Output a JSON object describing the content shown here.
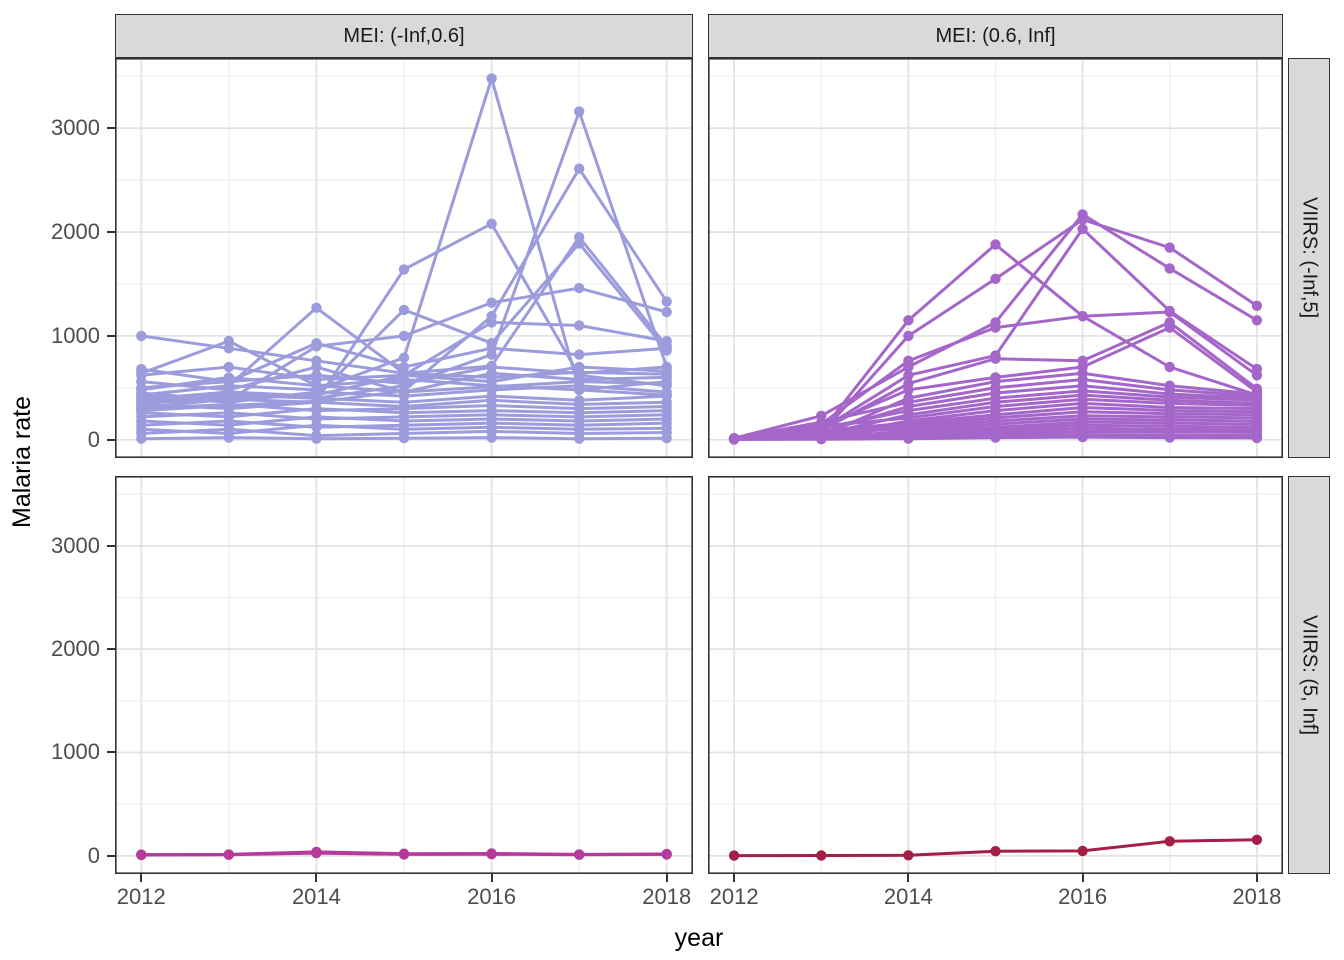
{
  "figure": {
    "y_axis_title": "Malaria rate",
    "x_axis_title": "year",
    "column_strips": [
      "MEI: (-Inf,0.6]",
      "MEI: (0.6, Inf]"
    ],
    "row_strips": [
      "VIIRS: (-Inf,5]",
      "VIIRS: (5, Inf]"
    ],
    "y_tick_labels": [
      "0",
      "1000",
      "2000",
      "3000"
    ],
    "x_tick_labels": [
      "2012",
      "2014",
      "2016",
      "2018"
    ]
  },
  "colors": {
    "series_top_left": "#9c9cdc",
    "series_top_right": "#a566c9",
    "series_bottom_left": "#b53a9c",
    "series_bottom_right": "#a41e45",
    "strip_background": "#d9d9d9",
    "panel_border": "#333333",
    "grid_major": "#e3e3e3",
    "grid_minor": "#f0f0f0",
    "tick_label": "#4d4d4d",
    "background": "#ffffff"
  },
  "chart_data": {
    "type": "line",
    "title": "",
    "xlabel": "year",
    "ylabel": "Malaria rate",
    "x": [
      2012,
      2013,
      2014,
      2015,
      2016,
      2017,
      2018
    ],
    "x_ticks": [
      2012,
      2014,
      2016,
      2018
    ],
    "y_ticks": [
      0,
      1000,
      2000,
      3000
    ],
    "x_minor": [
      2013,
      2015,
      2017
    ],
    "y_minor": [
      500,
      1500,
      2500,
      3500
    ],
    "xlim": [
      2011.7,
      2018.3
    ],
    "ylim": [
      -176,
      3676
    ],
    "grid": true,
    "legend": "none",
    "facet_columns": [
      "MEI: (-Inf,0.6]",
      "MEI: (0.6, Inf]"
    ],
    "facet_rows": [
      "VIIRS: (-Inf,5]",
      "VIIRS: (5, Inf]"
    ],
    "panels": [
      {
        "col_facet": "MEI: (-Inf,0.6]",
        "row_facet": "VIIRS: (-Inf,5]",
        "color": "#9c9cdc",
        "series": [
          [
            430,
            520,
            480,
            790,
            3480,
            480,
            430
          ],
          [
            360,
            430,
            400,
            520,
            820,
            3160,
            700
          ],
          [
            310,
            390,
            360,
            470,
            1190,
            2610,
            1330
          ],
          [
            280,
            330,
            370,
            1640,
            2080,
            620,
            520
          ],
          [
            430,
            520,
            1270,
            640,
            710,
            1950,
            900
          ],
          [
            390,
            460,
            420,
            1250,
            930,
            1890,
            860
          ],
          [
            1000,
            880,
            760,
            640,
            600,
            650,
            630
          ],
          [
            640,
            950,
            520,
            460,
            510,
            560,
            540
          ],
          [
            450,
            380,
            900,
            1000,
            1320,
            1460,
            1230
          ],
          [
            350,
            400,
            430,
            620,
            1130,
            1100,
            950
          ],
          [
            500,
            560,
            930,
            700,
            880,
            820,
            880
          ],
          [
            680,
            560,
            620,
            540,
            700,
            640,
            700
          ],
          [
            620,
            700,
            580,
            620,
            560,
            700,
            660
          ],
          [
            560,
            480,
            700,
            460,
            640,
            580,
            600
          ],
          [
            480,
            600,
            520,
            580,
            520,
            480,
            560
          ],
          [
            420,
            360,
            460,
            420,
            480,
            520,
            460
          ],
          [
            380,
            440,
            400,
            360,
            420,
            380,
            420
          ],
          [
            340,
            300,
            360,
            320,
            380,
            340,
            360
          ],
          [
            300,
            340,
            280,
            300,
            330,
            300,
            320
          ],
          [
            260,
            220,
            300,
            260,
            280,
            260,
            280
          ],
          [
            220,
            260,
            200,
            220,
            240,
            220,
            240
          ],
          [
            180,
            140,
            220,
            180,
            200,
            180,
            200
          ],
          [
            140,
            180,
            120,
            140,
            160,
            140,
            160
          ],
          [
            100,
            60,
            140,
            100,
            120,
            100,
            110
          ],
          [
            60,
            100,
            40,
            60,
            80,
            60,
            70
          ],
          [
            10,
            20,
            10,
            15,
            20,
            10,
            15
          ]
        ]
      },
      {
        "col_facet": "MEI: (0.6, Inf]",
        "row_facet": "VIIRS: (-Inf,5]",
        "color": "#a566c9",
        "series": [
          [
            10,
            80,
            1150,
            1880,
            1190,
            700,
            430
          ],
          [
            5,
            60,
            1000,
            1550,
            2120,
            1850,
            1290
          ],
          [
            15,
            230,
            700,
            1130,
            2170,
            1650,
            1150
          ],
          [
            8,
            100,
            620,
            810,
            2030,
            1240,
            680
          ],
          [
            12,
            150,
            760,
            1080,
            1190,
            1230,
            620
          ],
          [
            6,
            90,
            540,
            780,
            760,
            1130,
            490
          ],
          [
            10,
            120,
            480,
            600,
            700,
            1080,
            460
          ],
          [
            4,
            40,
            400,
            560,
            640,
            520,
            440
          ],
          [
            14,
            170,
            360,
            500,
            580,
            480,
            420
          ],
          [
            8,
            70,
            320,
            450,
            520,
            440,
            400
          ],
          [
            12,
            110,
            280,
            400,
            470,
            410,
            380
          ],
          [
            5,
            50,
            240,
            360,
            430,
            380,
            350
          ],
          [
            10,
            130,
            210,
            320,
            390,
            350,
            330
          ],
          [
            7,
            30,
            180,
            280,
            350,
            310,
            300
          ],
          [
            12,
            90,
            160,
            240,
            310,
            280,
            270
          ],
          [
            4,
            60,
            140,
            210,
            270,
            250,
            240
          ],
          [
            9,
            40,
            120,
            180,
            230,
            220,
            210
          ],
          [
            6,
            80,
            100,
            150,
            200,
            190,
            180
          ],
          [
            11,
            25,
            80,
            120,
            170,
            160,
            150
          ],
          [
            3,
            50,
            60,
            100,
            140,
            130,
            120
          ],
          [
            8,
            15,
            45,
            80,
            110,
            100,
            95
          ],
          [
            5,
            35,
            30,
            60,
            80,
            75,
            70
          ],
          [
            10,
            10,
            20,
            40,
            50,
            45,
            40
          ],
          [
            2,
            5,
            10,
            20,
            25,
            20,
            18
          ]
        ]
      },
      {
        "col_facet": "MEI: (-Inf,0.6]",
        "row_facet": "VIIRS: (5, Inf]",
        "color": "#b53a9c",
        "series": [
          [
            12,
            14,
            38,
            20,
            22,
            14,
            18
          ],
          [
            8,
            10,
            26,
            14,
            16,
            10,
            14
          ]
        ]
      },
      {
        "col_facet": "MEI: (0.6, Inf]",
        "row_facet": "VIIRS: (5, Inf]",
        "color": "#a41e45",
        "series": [
          [
            2,
            3,
            5,
            45,
            48,
            140,
            155
          ]
        ]
      }
    ]
  }
}
